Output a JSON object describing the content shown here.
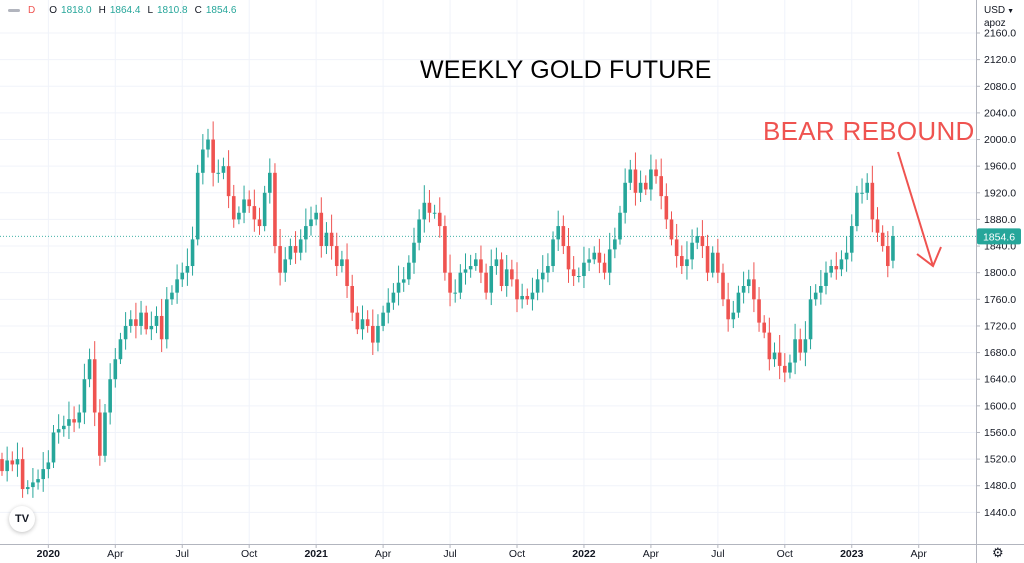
{
  "legend": {
    "interval": "D",
    "open_label": "O",
    "open": "1818.0",
    "high_label": "H",
    "high": "1864.4",
    "low_label": "L",
    "low": "1810.8",
    "close_label": "C",
    "close": "1854.6"
  },
  "currency": "USD",
  "scale_mode": "apoz",
  "title_text": "WEEKLY GOLD FUTURE",
  "annotation_text": "BEAR REBOUND",
  "logo_text": "TV",
  "colors": {
    "up": "#26a69a",
    "down": "#ef5350",
    "grid": "#f0f3fa",
    "price_line": "#26a69a",
    "annotation": "#ef5350"
  },
  "chart_data": {
    "type": "candlestick",
    "title": "WEEKLY GOLD FUTURE",
    "xlabel": "",
    "ylabel": "",
    "ylim": [
      1400,
      2160
    ],
    "y_ticks": [
      1440,
      1480,
      1520,
      1560,
      1600,
      1640,
      1680,
      1720,
      1760,
      1800,
      1840,
      1880,
      1920,
      1960,
      2000,
      2040,
      2080,
      2120,
      2160
    ],
    "y_tick_labels": [
      "1440.0",
      "1480.0",
      "1520.0",
      "1560.0",
      "1600.0",
      "1640.0",
      "1680.0",
      "1720.0",
      "1760.0",
      "1800.0",
      "1840.0",
      "1880.0",
      "1920.0",
      "1960.0",
      "2000.0",
      "2040.0",
      "2080.0",
      "2120.0",
      "2160.0"
    ],
    "x_tick_labels": [
      "2020",
      "Apr",
      "Jul",
      "Oct",
      "2021",
      "Apr",
      "Jul",
      "Oct",
      "2022",
      "Apr",
      "Jul",
      "Oct",
      "2023",
      "Apr"
    ],
    "x_tick_weeks": [
      9,
      22,
      35,
      48,
      61,
      74,
      87,
      100,
      113,
      126,
      139,
      152,
      165,
      178
    ],
    "last_price": 1854.6,
    "last_price_label": "1854.6",
    "grid": true,
    "closes": [
      1502,
      1518,
      1512,
      1520,
      1475,
      1478,
      1485,
      1490,
      1505,
      1515,
      1560,
      1565,
      1570,
      1580,
      1575,
      1590,
      1640,
      1670,
      1590,
      1525,
      1590,
      1640,
      1670,
      1700,
      1720,
      1730,
      1720,
      1740,
      1715,
      1720,
      1735,
      1700,
      1760,
      1770,
      1790,
      1800,
      1810,
      1850,
      1950,
      1985,
      2000,
      1950,
      1950,
      1960,
      1915,
      1880,
      1890,
      1910,
      1900,
      1880,
      1870,
      1920,
      1950,
      1840,
      1800,
      1820,
      1840,
      1830,
      1850,
      1870,
      1880,
      1890,
      1840,
      1860,
      1840,
      1810,
      1820,
      1780,
      1740,
      1715,
      1730,
      1720,
      1695,
      1720,
      1740,
      1755,
      1770,
      1785,
      1790,
      1815,
      1845,
      1880,
      1905,
      1890,
      1890,
      1870,
      1800,
      1770,
      1770,
      1800,
      1805,
      1810,
      1820,
      1800,
      1770,
      1810,
      1820,
      1780,
      1805,
      1790,
      1760,
      1765,
      1760,
      1770,
      1790,
      1800,
      1810,
      1850,
      1870,
      1840,
      1805,
      1795,
      1795,
      1815,
      1820,
      1830,
      1815,
      1800,
      1835,
      1850,
      1890,
      1935,
      1955,
      1920,
      1935,
      1925,
      1955,
      1945,
      1915,
      1880,
      1850,
      1825,
      1810,
      1820,
      1845,
      1855,
      1840,
      1800,
      1830,
      1800,
      1760,
      1730,
      1740,
      1770,
      1780,
      1790,
      1760,
      1725,
      1710,
      1670,
      1680,
      1660,
      1650,
      1665,
      1700,
      1680,
      1700,
      1760,
      1770,
      1780,
      1800,
      1810,
      1805,
      1820,
      1830,
      1870,
      1920,
      1920,
      1935,
      1880,
      1860,
      1840,
      1810,
      1855
    ],
    "opens": [
      1520,
      1502,
      1518,
      1512,
      1520,
      1475,
      1478,
      1485,
      1490,
      1505,
      1515,
      1560,
      1565,
      1570,
      1580,
      1575,
      1590,
      1640,
      1670,
      1590,
      1525,
      1590,
      1640,
      1670,
      1700,
      1720,
      1730,
      1720,
      1740,
      1715,
      1720,
      1735,
      1700,
      1760,
      1770,
      1790,
      1800,
      1810,
      1850,
      1950,
      1985,
      2000,
      1950,
      1950,
      1960,
      1915,
      1880,
      1890,
      1910,
      1900,
      1880,
      1870,
      1920,
      1950,
      1840,
      1800,
      1820,
      1840,
      1830,
      1850,
      1870,
      1880,
      1890,
      1840,
      1860,
      1840,
      1810,
      1820,
      1780,
      1740,
      1715,
      1730,
      1720,
      1695,
      1720,
      1740,
      1755,
      1770,
      1785,
      1790,
      1815,
      1845,
      1880,
      1905,
      1890,
      1890,
      1870,
      1800,
      1770,
      1770,
      1800,
      1805,
      1810,
      1820,
      1800,
      1770,
      1810,
      1820,
      1780,
      1805,
      1790,
      1760,
      1765,
      1760,
      1770,
      1790,
      1800,
      1810,
      1850,
      1870,
      1840,
      1805,
      1795,
      1795,
      1815,
      1820,
      1830,
      1815,
      1800,
      1835,
      1850,
      1890,
      1935,
      1955,
      1920,
      1935,
      1925,
      1955,
      1945,
      1915,
      1880,
      1850,
      1825,
      1810,
      1820,
      1845,
      1855,
      1840,
      1800,
      1830,
      1800,
      1760,
      1730,
      1740,
      1770,
      1780,
      1790,
      1760,
      1725,
      1710,
      1670,
      1680,
      1660,
      1650,
      1665,
      1700,
      1680,
      1700,
      1760,
      1770,
      1780,
      1800,
      1810,
      1805,
      1820,
      1830,
      1870,
      1920,
      1920,
      1935,
      1880,
      1860,
      1840,
      1818
    ]
  }
}
